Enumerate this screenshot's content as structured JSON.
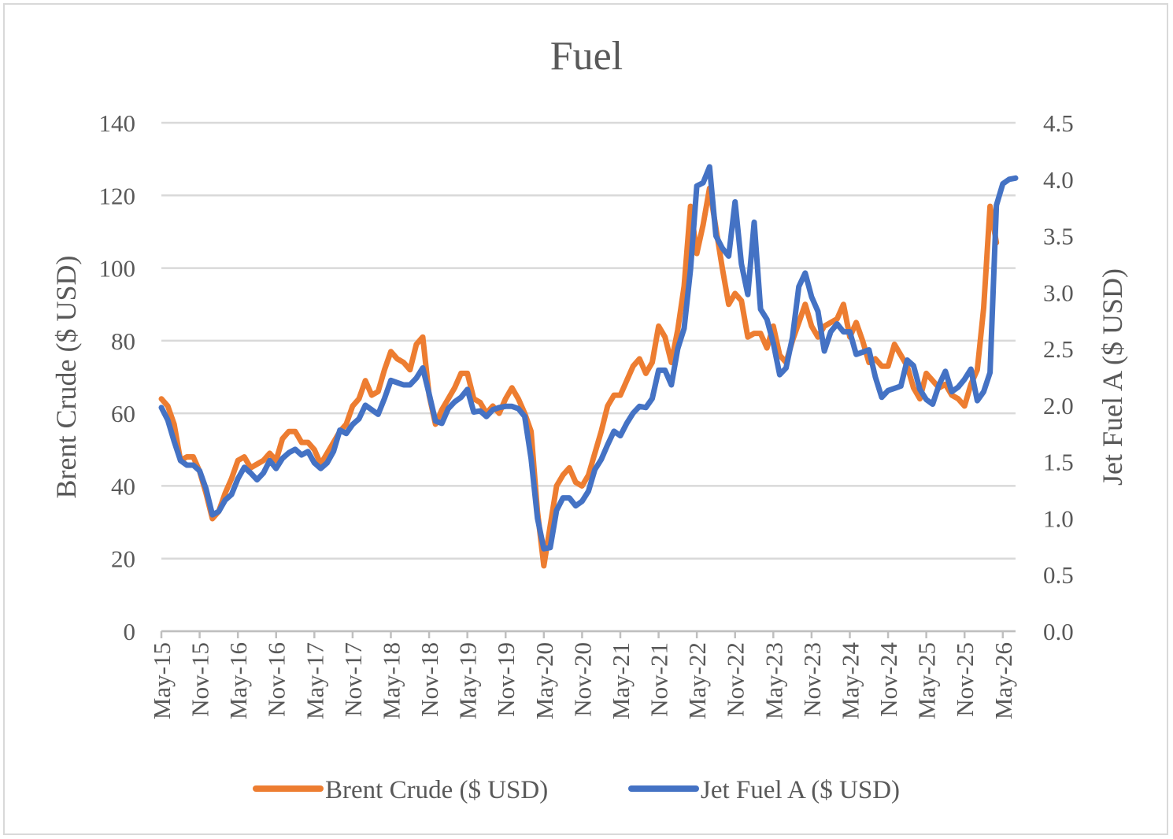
{
  "chart_data": {
    "type": "line",
    "title": "Fuel",
    "ylabel": "Brent Crude ($ USD)",
    "y2label": "Jet Fuel A ($ USD)",
    "ylim": [
      0,
      140
    ],
    "y2lim": [
      0,
      4.5
    ],
    "yticks": [
      "0",
      "20",
      "40",
      "60",
      "80",
      "100",
      "120",
      "140"
    ],
    "y2ticks": [
      "0.0",
      "0.5",
      "1.0",
      "1.5",
      "2.0",
      "2.5",
      "3.0",
      "3.5",
      "4.0",
      "4.5"
    ],
    "xticks": [
      "May-15",
      "Nov-15",
      "May-16",
      "Nov-16",
      "May-17",
      "Nov-17",
      "May-18",
      "Nov-18",
      "May-19",
      "Nov-19",
      "May-20",
      "Nov-20",
      "May-21",
      "Nov-21",
      "May-22",
      "Nov-22",
      "May-23",
      "Nov-23",
      "May-24",
      "Nov-24",
      "May-25",
      "Nov-25",
      "May-26"
    ],
    "grid": true,
    "legend_position": "bottom",
    "series": [
      {
        "name": "Brent Crude ($ USD)",
        "axis": "left",
        "color": "#ed7d31",
        "points": [
          [
            0,
            64
          ],
          [
            1,
            62
          ],
          [
            2,
            57
          ],
          [
            3,
            47
          ],
          [
            4,
            48
          ],
          [
            5,
            48
          ],
          [
            6,
            44
          ],
          [
            7,
            38
          ],
          [
            8,
            31
          ],
          [
            9,
            33
          ],
          [
            10,
            38
          ],
          [
            11,
            42
          ],
          [
            12,
            47
          ],
          [
            13,
            48
          ],
          [
            14,
            45
          ],
          [
            15,
            46
          ],
          [
            16,
            47
          ],
          [
            17,
            49
          ],
          [
            18,
            47
          ],
          [
            19,
            53
          ],
          [
            20,
            55
          ],
          [
            21,
            55
          ],
          [
            22,
            52
          ],
          [
            23,
            52
          ],
          [
            24,
            50
          ],
          [
            25,
            46
          ],
          [
            26,
            49
          ],
          [
            27,
            52
          ],
          [
            28,
            55
          ],
          [
            29,
            57
          ],
          [
            30,
            62
          ],
          [
            31,
            64
          ],
          [
            32,
            69
          ],
          [
            33,
            65
          ],
          [
            34,
            66
          ],
          [
            35,
            72
          ],
          [
            36,
            77
          ],
          [
            37,
            75
          ],
          [
            38,
            74
          ],
          [
            39,
            72
          ],
          [
            40,
            79
          ],
          [
            41,
            81
          ],
          [
            42,
            65
          ],
          [
            43,
            57
          ],
          [
            44,
            61
          ],
          [
            45,
            64
          ],
          [
            46,
            67
          ],
          [
            47,
            71
          ],
          [
            48,
            71
          ],
          [
            49,
            64
          ],
          [
            50,
            63
          ],
          [
            51,
            60
          ],
          [
            52,
            62
          ],
          [
            53,
            60
          ],
          [
            54,
            64
          ],
          [
            55,
            67
          ],
          [
            56,
            64
          ],
          [
            57,
            60
          ],
          [
            58,
            55
          ],
          [
            59,
            33
          ],
          [
            60,
            18
          ],
          [
            61,
            29
          ],
          [
            62,
            40
          ],
          [
            63,
            43
          ],
          [
            64,
            45
          ],
          [
            65,
            41
          ],
          [
            66,
            40
          ],
          [
            67,
            43
          ],
          [
            68,
            49
          ],
          [
            69,
            55
          ],
          [
            70,
            62
          ],
          [
            71,
            65
          ],
          [
            72,
            65
          ],
          [
            73,
            69
          ],
          [
            74,
            73
          ],
          [
            75,
            75
          ],
          [
            76,
            71
          ],
          [
            77,
            74
          ],
          [
            78,
            84
          ],
          [
            79,
            81
          ],
          [
            80,
            74
          ],
          [
            81,
            83
          ],
          [
            82,
            95
          ],
          [
            83,
            117
          ],
          [
            84,
            104
          ],
          [
            85,
            112
          ],
          [
            86,
            122
          ],
          [
            87,
            111
          ],
          [
            88,
            100
          ],
          [
            89,
            90
          ],
          [
            90,
            93
          ],
          [
            91,
            91
          ],
          [
            92,
            81
          ],
          [
            93,
            82
          ],
          [
            94,
            82
          ],
          [
            95,
            78
          ],
          [
            96,
            84
          ],
          [
            97,
            76
          ],
          [
            98,
            74
          ],
          [
            99,
            80
          ],
          [
            100,
            85
          ],
          [
            101,
            90
          ],
          [
            102,
            84
          ],
          [
            103,
            81
          ],
          [
            104,
            84
          ],
          [
            105,
            85
          ],
          [
            106,
            86
          ],
          [
            107,
            90
          ],
          [
            108,
            81
          ],
          [
            109,
            85
          ],
          [
            110,
            80
          ],
          [
            111,
            74
          ],
          [
            112,
            75
          ],
          [
            113,
            73
          ],
          [
            114,
            73
          ],
          [
            115,
            79
          ],
          [
            116,
            76
          ],
          [
            117,
            73
          ],
          [
            118,
            67
          ],
          [
            119,
            64
          ],
          [
            120,
            71
          ],
          [
            121,
            69
          ],
          [
            122,
            67
          ],
          [
            123,
            68
          ],
          [
            124,
            65
          ],
          [
            125,
            64
          ],
          [
            126,
            62
          ],
          [
            127,
            68
          ],
          [
            128,
            72
          ],
          [
            129,
            89
          ],
          [
            130,
            117
          ],
          [
            131,
            107
          ]
        ]
      },
      {
        "name": "Jet Fuel A ($ USD)",
        "axis": "right",
        "color": "#4472c4",
        "points": [
          [
            0,
            1.98
          ],
          [
            1,
            1.87
          ],
          [
            2,
            1.68
          ],
          [
            3,
            1.51
          ],
          [
            4,
            1.47
          ],
          [
            5,
            1.47
          ],
          [
            6,
            1.42
          ],
          [
            7,
            1.26
          ],
          [
            8,
            1.03
          ],
          [
            9,
            1.06
          ],
          [
            10,
            1.16
          ],
          [
            11,
            1.21
          ],
          [
            12,
            1.35
          ],
          [
            13,
            1.45
          ],
          [
            14,
            1.4
          ],
          [
            15,
            1.34
          ],
          [
            16,
            1.4
          ],
          [
            17,
            1.51
          ],
          [
            18,
            1.44
          ],
          [
            19,
            1.53
          ],
          [
            20,
            1.58
          ],
          [
            21,
            1.61
          ],
          [
            22,
            1.56
          ],
          [
            23,
            1.59
          ],
          [
            24,
            1.49
          ],
          [
            25,
            1.44
          ],
          [
            26,
            1.49
          ],
          [
            27,
            1.59
          ],
          [
            28,
            1.78
          ],
          [
            29,
            1.75
          ],
          [
            30,
            1.83
          ],
          [
            31,
            1.88
          ],
          [
            32,
            2.0
          ],
          [
            33,
            1.96
          ],
          [
            34,
            1.92
          ],
          [
            35,
            2.06
          ],
          [
            36,
            2.22
          ],
          [
            37,
            2.2
          ],
          [
            38,
            2.18
          ],
          [
            39,
            2.18
          ],
          [
            40,
            2.24
          ],
          [
            41,
            2.33
          ],
          [
            42,
            2.1
          ],
          [
            43,
            1.86
          ],
          [
            44,
            1.84
          ],
          [
            45,
            1.97
          ],
          [
            46,
            2.03
          ],
          [
            47,
            2.07
          ],
          [
            48,
            2.14
          ],
          [
            49,
            1.94
          ],
          [
            50,
            1.95
          ],
          [
            51,
            1.9
          ],
          [
            52,
            1.96
          ],
          [
            53,
            1.98
          ],
          [
            54,
            1.99
          ],
          [
            55,
            1.99
          ],
          [
            56,
            1.97
          ],
          [
            57,
            1.9
          ],
          [
            58,
            1.53
          ],
          [
            59,
            1.0
          ],
          [
            60,
            0.73
          ],
          [
            61,
            0.74
          ],
          [
            62,
            1.07
          ],
          [
            63,
            1.18
          ],
          [
            64,
            1.18
          ],
          [
            65,
            1.11
          ],
          [
            66,
            1.15
          ],
          [
            67,
            1.24
          ],
          [
            68,
            1.43
          ],
          [
            69,
            1.52
          ],
          [
            70,
            1.65
          ],
          [
            71,
            1.77
          ],
          [
            72,
            1.73
          ],
          [
            73,
            1.84
          ],
          [
            74,
            1.93
          ],
          [
            75,
            1.99
          ],
          [
            76,
            1.98
          ],
          [
            77,
            2.06
          ],
          [
            78,
            2.31
          ],
          [
            79,
            2.31
          ],
          [
            80,
            2.18
          ],
          [
            81,
            2.5
          ],
          [
            82,
            2.68
          ],
          [
            83,
            3.2
          ],
          [
            84,
            3.94
          ],
          [
            85,
            3.97
          ],
          [
            86,
            4.11
          ],
          [
            87,
            3.5
          ],
          [
            88,
            3.39
          ],
          [
            89,
            3.32
          ],
          [
            90,
            3.8
          ],
          [
            91,
            3.25
          ],
          [
            92,
            2.98
          ],
          [
            93,
            3.62
          ],
          [
            94,
            2.85
          ],
          [
            95,
            2.76
          ],
          [
            96,
            2.55
          ],
          [
            97,
            2.27
          ],
          [
            98,
            2.33
          ],
          [
            99,
            2.6
          ],
          [
            100,
            3.05
          ],
          [
            101,
            3.17
          ],
          [
            102,
            2.96
          ],
          [
            103,
            2.83
          ],
          [
            104,
            2.48
          ],
          [
            105,
            2.65
          ],
          [
            106,
            2.72
          ],
          [
            107,
            2.65
          ],
          [
            108,
            2.65
          ],
          [
            109,
            2.45
          ],
          [
            110,
            2.47
          ],
          [
            111,
            2.49
          ],
          [
            112,
            2.25
          ],
          [
            113,
            2.07
          ],
          [
            114,
            2.13
          ],
          [
            115,
            2.15
          ],
          [
            116,
            2.17
          ],
          [
            117,
            2.4
          ],
          [
            118,
            2.35
          ],
          [
            119,
            2.14
          ],
          [
            120,
            2.05
          ],
          [
            121,
            2.01
          ],
          [
            122,
            2.18
          ],
          [
            123,
            2.3
          ],
          [
            124,
            2.12
          ],
          [
            125,
            2.16
          ],
          [
            126,
            2.23
          ],
          [
            127,
            2.32
          ],
          [
            128,
            2.04
          ],
          [
            129,
            2.12
          ],
          [
            130,
            2.29
          ],
          [
            131,
            3.77
          ],
          [
            132,
            3.96
          ],
          [
            133,
            4.0
          ],
          [
            134,
            4.01
          ]
        ]
      }
    ]
  }
}
